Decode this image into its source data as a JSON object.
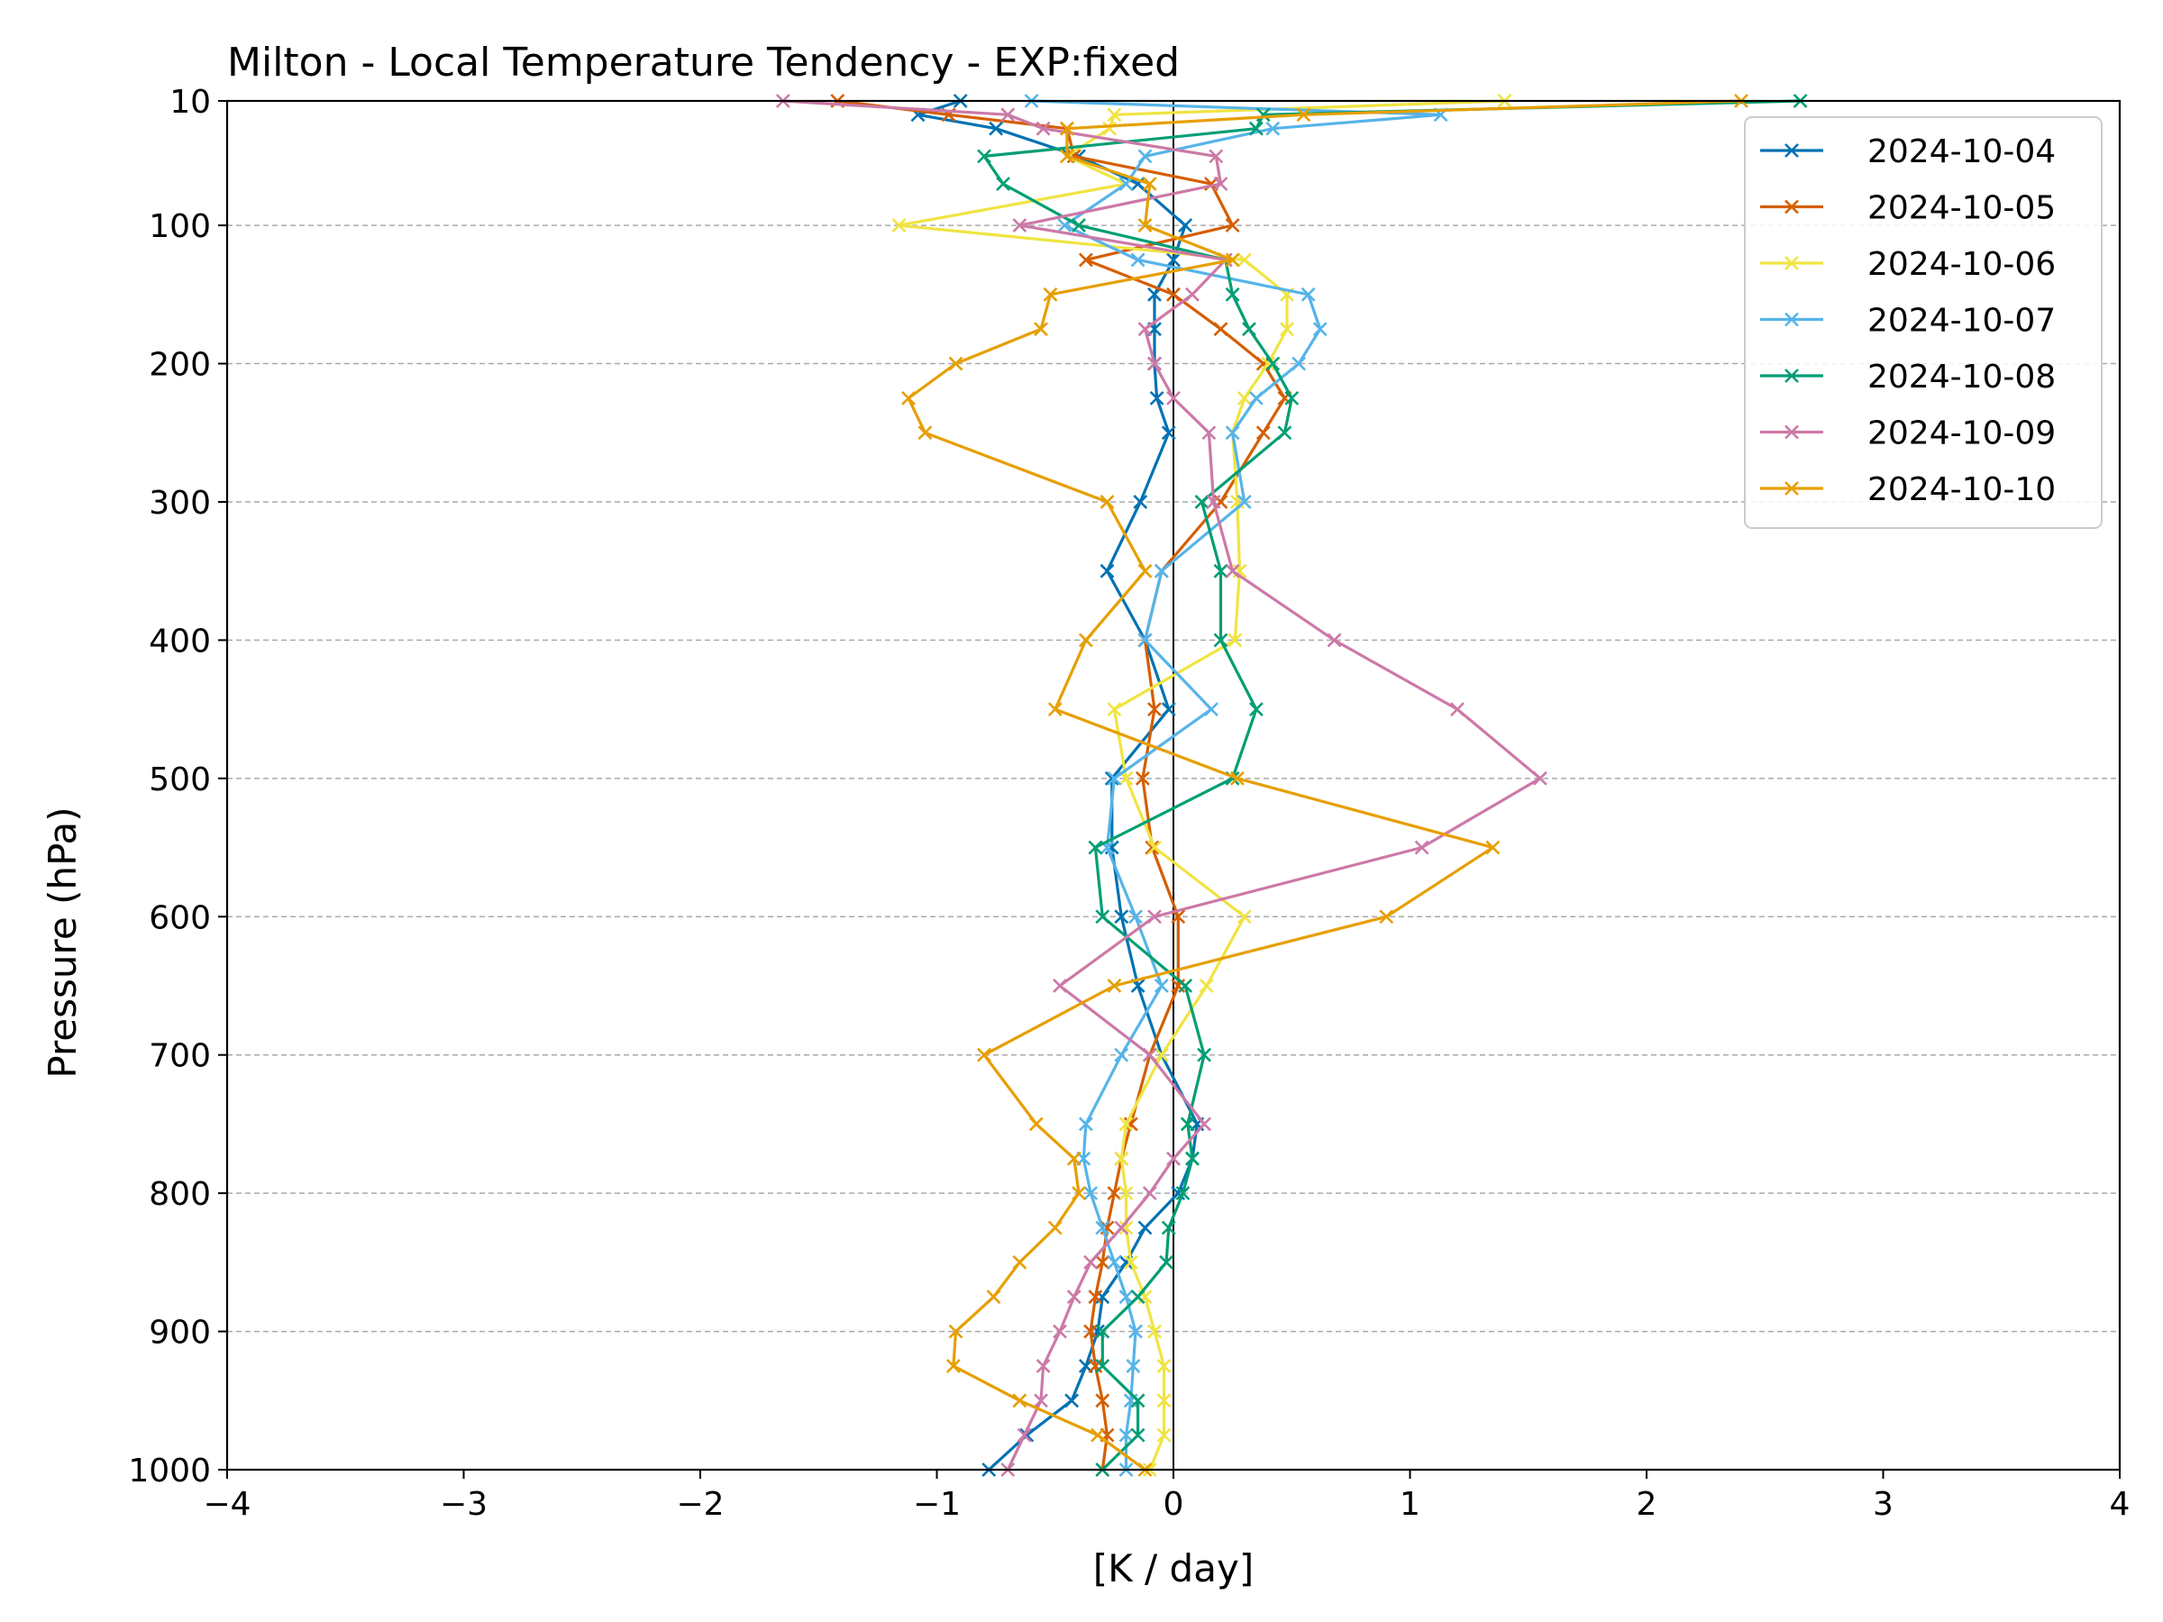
{
  "chart_data": {
    "type": "line",
    "title": "Milton - Local Temperature Tendency - EXP:fixed",
    "xlabel": "[K / day]",
    "ylabel": "Pressure (hPa)",
    "xlim": [
      -4,
      4
    ],
    "ylim": [
      10,
      1000
    ],
    "y_inverted": true,
    "x_ticks": [
      -4,
      -3,
      -2,
      -1,
      0,
      1,
      2,
      3,
      4
    ],
    "x_tick_labels": [
      "−4",
      "−3",
      "−2",
      "−1",
      "0",
      "1",
      "2",
      "3",
      "4"
    ],
    "y_ticks": [
      10,
      100,
      200,
      300,
      400,
      500,
      600,
      700,
      800,
      900,
      1000
    ],
    "y_tick_labels": [
      "10",
      "100",
      "200",
      "300",
      "400",
      "500",
      "600",
      "700",
      "800",
      "900",
      "1000"
    ],
    "grid": "horizontal dashed",
    "zero_line": true,
    "legend_position": "top-right",
    "marker": "x",
    "pressure_levels": [
      10,
      20,
      30,
      50,
      70,
      100,
      125,
      150,
      175,
      200,
      225,
      250,
      300,
      350,
      400,
      450,
      500,
      550,
      600,
      650,
      700,
      750,
      775,
      800,
      825,
      850,
      875,
      900,
      925,
      950,
      975,
      1000
    ],
    "series": [
      {
        "name": "2024-10-04",
        "color": "#0072b2",
        "values": [
          -0.9,
          -1.08,
          -0.75,
          -0.4,
          -0.15,
          0.05,
          0.0,
          -0.08,
          -0.08,
          -0.08,
          -0.07,
          -0.02,
          -0.14,
          -0.28,
          -0.12,
          -0.02,
          -0.26,
          -0.26,
          -0.22,
          -0.15,
          -0.05,
          0.1,
          0.08,
          0.02,
          -0.12,
          -0.2,
          -0.3,
          -0.32,
          -0.37,
          -0.43,
          -0.62,
          -0.78
        ]
      },
      {
        "name": "2024-10-05",
        "color": "#d55e00",
        "values": [
          -1.42,
          -0.95,
          -0.45,
          -0.42,
          0.16,
          0.25,
          -0.37,
          0.0,
          0.2,
          0.38,
          0.47,
          0.38,
          0.2,
          -0.05,
          -0.12,
          -0.08,
          -0.13,
          -0.09,
          0.02,
          0.02,
          -0.1,
          -0.18,
          -0.22,
          -0.25,
          -0.28,
          -0.3,
          -0.33,
          -0.35,
          -0.33,
          -0.3,
          -0.28,
          -0.3
        ]
      },
      {
        "name": "2024-10-06",
        "color": "#f0e442",
        "values": [
          1.4,
          -0.25,
          -0.27,
          -0.45,
          -0.2,
          -1.16,
          0.3,
          0.48,
          0.48,
          0.4,
          0.3,
          0.25,
          0.27,
          0.28,
          0.26,
          -0.25,
          -0.2,
          -0.08,
          0.3,
          0.14,
          -0.05,
          -0.2,
          -0.22,
          -0.2,
          -0.2,
          -0.18,
          -0.12,
          -0.08,
          -0.04,
          -0.04,
          -0.04,
          -0.1
        ]
      },
      {
        "name": "2024-10-07",
        "color": "#56b4e9",
        "values": [
          -0.6,
          1.13,
          0.42,
          -0.12,
          -0.2,
          -0.46,
          -0.15,
          0.57,
          0.62,
          0.53,
          0.35,
          0.25,
          0.3,
          -0.05,
          -0.12,
          0.16,
          -0.25,
          -0.28,
          -0.16,
          -0.05,
          -0.22,
          -0.37,
          -0.38,
          -0.35,
          -0.3,
          -0.25,
          -0.2,
          -0.16,
          -0.17,
          -0.18,
          -0.2,
          -0.2
        ]
      },
      {
        "name": "2024-10-08",
        "color": "#009e73",
        "values": [
          2.65,
          0.38,
          0.35,
          -0.8,
          -0.72,
          -0.4,
          0.22,
          0.25,
          0.32,
          0.42,
          0.5,
          0.47,
          0.12,
          0.2,
          0.2,
          0.35,
          0.25,
          -0.33,
          -0.3,
          0.05,
          0.13,
          0.06,
          0.08,
          0.04,
          -0.02,
          -0.03,
          -0.15,
          -0.3,
          -0.3,
          -0.15,
          -0.15,
          -0.3
        ]
      },
      {
        "name": "2024-10-09",
        "color": "#cc79a7",
        "values": [
          -1.65,
          -0.7,
          -0.55,
          0.18,
          0.2,
          -0.65,
          0.22,
          0.08,
          -0.12,
          -0.08,
          0.0,
          0.15,
          0.17,
          0.25,
          0.68,
          1.2,
          1.55,
          1.05,
          -0.08,
          -0.48,
          -0.1,
          0.13,
          0.0,
          -0.1,
          -0.22,
          -0.35,
          -0.42,
          -0.48,
          -0.55,
          -0.56,
          -0.63,
          -0.7
        ]
      },
      {
        "name": "2024-10-10",
        "color": "#e69f00",
        "values": [
          2.4,
          0.55,
          -0.45,
          -0.45,
          -0.1,
          -0.12,
          0.25,
          -0.52,
          -0.56,
          -0.92,
          -1.12,
          -1.05,
          -0.28,
          -0.12,
          -0.37,
          -0.5,
          0.27,
          1.35,
          0.9,
          -0.25,
          -0.8,
          -0.58,
          -0.42,
          -0.4,
          -0.5,
          -0.65,
          -0.76,
          -0.92,
          -0.93,
          -0.65,
          -0.32,
          -0.12
        ]
      }
    ]
  }
}
